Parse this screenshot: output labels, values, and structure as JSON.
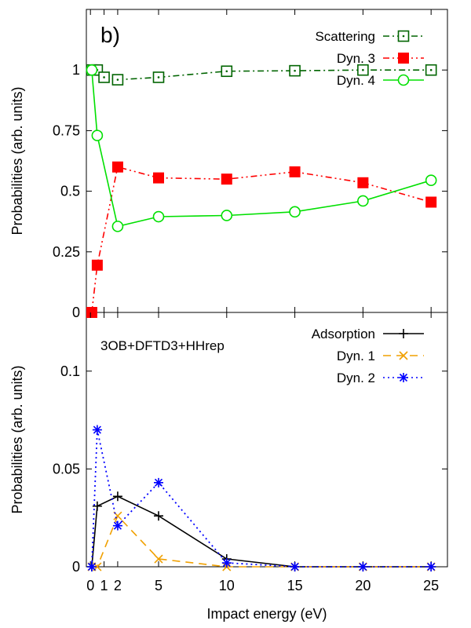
{
  "chart_data": [
    {
      "type": "line",
      "panel_label": "b)",
      "xlabel": "",
      "ylabel": "Probabilities (arb. units)",
      "xlim": [
        -0.3,
        26.2
      ],
      "ylim": [
        0,
        1.25
      ],
      "yticks": [
        0,
        0.25,
        0.5,
        0.75,
        1
      ],
      "ytick_labels": [
        "0",
        "0.25",
        "0.5",
        "0.75",
        "1"
      ],
      "legend_position": "top-right",
      "series": [
        {
          "name": "Scattering",
          "color": "#006400",
          "dash": "dashdot",
          "marker": "open-square-dot",
          "x": [
            0.1,
            0.5,
            1,
            2,
            5,
            10,
            15,
            20,
            25
          ],
          "values": [
            1.0,
            1.0,
            0.97,
            0.96,
            0.97,
            0.995,
            0.997,
            1.0,
            1.0
          ]
        },
        {
          "name": "Dyn. 3",
          "color": "#ff0000",
          "dash": "dashdotdot",
          "marker": "filled-square",
          "x": [
            0.1,
            0.5,
            2,
            5,
            10,
            15,
            20,
            25
          ],
          "values": [
            0.0,
            0.195,
            0.6,
            0.555,
            0.55,
            0.58,
            0.535,
            0.455
          ]
        },
        {
          "name": "Dyn. 4",
          "color": "#00e000",
          "dash": "solid",
          "marker": "open-circle",
          "x": [
            0.1,
            0.5,
            2,
            5,
            10,
            15,
            20,
            25
          ],
          "values": [
            1.0,
            0.73,
            0.355,
            0.395,
            0.4,
            0.415,
            0.46,
            0.545
          ]
        }
      ]
    },
    {
      "type": "line",
      "annotation": "3OB+DFTD3+HHrep",
      "xlabel": "Impact energy (eV)",
      "ylabel": "Probabilities (arb. units)",
      "xlim": [
        -0.3,
        26.2
      ],
      "ylim": [
        0,
        0.13
      ],
      "xticks": [
        0,
        1,
        2,
        5,
        10,
        15,
        20,
        25
      ],
      "xtick_labels": [
        "0",
        "1",
        "2",
        "5",
        "10",
        "15",
        "20",
        "25"
      ],
      "yticks": [
        0,
        0.05,
        0.1
      ],
      "ytick_labels": [
        "0",
        "0.05",
        "0.1"
      ],
      "legend_position": "top-right",
      "series": [
        {
          "name": "Adsorption",
          "color": "#000000",
          "dash": "solid",
          "marker": "plus",
          "x": [
            0.1,
            0.5,
            2,
            5,
            10,
            15,
            20,
            25
          ],
          "values": [
            0.0,
            0.031,
            0.036,
            0.026,
            0.004,
            0.0,
            0.0,
            0.0
          ]
        },
        {
          "name": "Dyn. 1",
          "color": "#f0a000",
          "dash": "dashed",
          "marker": "cross",
          "x": [
            0.1,
            0.5,
            2,
            5,
            10,
            15,
            20,
            25
          ],
          "values": [
            0.0,
            0.0,
            0.026,
            0.004,
            0.0,
            0.0,
            0.0,
            0.0
          ]
        },
        {
          "name": "Dyn. 2",
          "color": "#0000ff",
          "dash": "dotted",
          "marker": "asterisk",
          "x": [
            0.1,
            0.5,
            2,
            5,
            10,
            15,
            20,
            25
          ],
          "values": [
            0.0,
            0.07,
            0.021,
            0.043,
            0.002,
            0.0,
            0.0,
            0.0
          ]
        }
      ]
    }
  ]
}
